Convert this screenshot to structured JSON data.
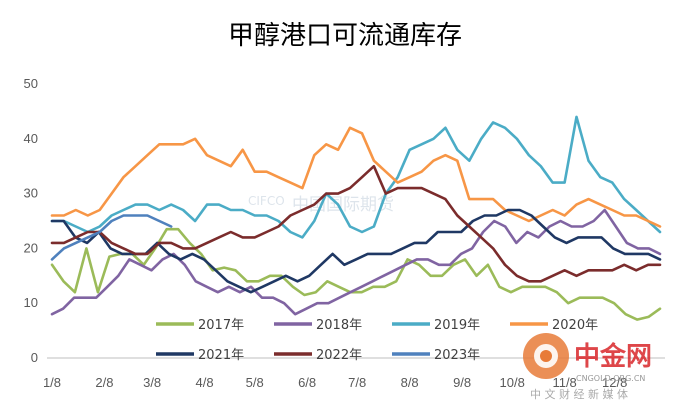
{
  "chart_data": {
    "type": "line",
    "title": "甲醇港口可流通库存",
    "xlabel": "",
    "ylabel": "",
    "ylim": [
      0,
      50
    ],
    "yticks": [
      0,
      10,
      20,
      30,
      40,
      50
    ],
    "x_week_range": [
      1,
      52
    ],
    "x_ticks": [
      {
        "label": "1/8",
        "week": 1
      },
      {
        "label": "2/8",
        "week": 5.4
      },
      {
        "label": "3/8",
        "week": 9.4
      },
      {
        "label": "4/8",
        "week": 13.8
      },
      {
        "label": "5/8",
        "week": 18.0
      },
      {
        "label": "6/8",
        "week": 22.4
      },
      {
        "label": "7/8",
        "week": 26.6
      },
      {
        "label": "8/8",
        "week": 31.0
      },
      {
        "label": "9/8",
        "week": 35.4
      },
      {
        "label": "10/8",
        "week": 39.6
      },
      {
        "label": "11/8",
        "week": 44.0
      },
      {
        "label": "12/8",
        "week": 48.2
      }
    ],
    "grid": false,
    "legend": "bottom",
    "series": [
      {
        "name": "2017年",
        "color": "#9bbb59",
        "values": [
          17,
          14,
          12,
          20,
          12,
          18.5,
          19,
          19,
          17,
          20,
          23.5,
          23.5,
          21,
          19,
          16,
          16.5,
          16,
          14,
          14,
          15,
          15,
          13,
          11.5,
          12,
          14,
          13,
          12,
          12,
          13,
          13,
          14,
          18,
          17,
          15,
          15,
          17,
          18,
          15,
          17,
          13,
          12,
          13,
          13,
          13,
          12,
          10,
          11,
          11,
          11,
          10,
          8,
          7,
          7.5,
          9
        ]
      },
      {
        "name": "2018年",
        "color": "#8064a2",
        "values": [
          8,
          9,
          11,
          11,
          11,
          13,
          15,
          18,
          17,
          16,
          18,
          19,
          17,
          14,
          13,
          12,
          13,
          12,
          13,
          11,
          11,
          10,
          8,
          9,
          10,
          10,
          11,
          12,
          13,
          14,
          15,
          16,
          17,
          18,
          18,
          17,
          17,
          19,
          20,
          23,
          25,
          24,
          21,
          23,
          22,
          24,
          25,
          24,
          24,
          25,
          27,
          24,
          21,
          20,
          20,
          19
        ]
      },
      {
        "name": "2019年",
        "color": "#4bacc6",
        "values": [
          25,
          25,
          24,
          23,
          24,
          26,
          27,
          28,
          28,
          27,
          28,
          27,
          25,
          28,
          28,
          27,
          27,
          26,
          26,
          25,
          23,
          22,
          25,
          30,
          28,
          24,
          23,
          24,
          30,
          33,
          38,
          39,
          40,
          42,
          38,
          36,
          40,
          43,
          42,
          40,
          37,
          35,
          32,
          32,
          44,
          36,
          33,
          32,
          29,
          27,
          25,
          23
        ]
      },
      {
        "name": "2020年",
        "color": "#f79646",
        "values": [
          26,
          26,
          27,
          26,
          27,
          30,
          33,
          35,
          37,
          39,
          39,
          39,
          40,
          37,
          36,
          35,
          38,
          34,
          34,
          33,
          32,
          31,
          37,
          39,
          38,
          42,
          41,
          36,
          34,
          32,
          33,
          34,
          36,
          37,
          36,
          29,
          29,
          29,
          27,
          26,
          25,
          26,
          27,
          26,
          28,
          29,
          28,
          27,
          26,
          26,
          25,
          24
        ]
      },
      {
        "name": "2021年",
        "color": "#1f3864",
        "values": [
          25,
          25,
          22,
          21,
          23,
          20,
          19,
          19,
          19,
          21,
          19,
          18,
          19,
          18,
          16,
          14,
          13,
          12,
          13,
          14,
          15,
          14,
          15,
          17,
          19,
          17,
          18,
          19,
          19,
          19,
          20,
          21,
          21,
          23,
          23,
          23,
          25,
          26,
          26,
          27,
          27,
          26,
          24,
          22,
          21,
          22,
          22,
          22,
          20,
          19,
          19,
          19,
          18
        ]
      },
      {
        "name": "2022年",
        "color": "#7b2c2c",
        "values": [
          21,
          21,
          22,
          23,
          23,
          21,
          20,
          19,
          19,
          21,
          21,
          20,
          20,
          21,
          22,
          23,
          22,
          22,
          23,
          24,
          26,
          27,
          28,
          30,
          30,
          31,
          33,
          35,
          30,
          31,
          31,
          31,
          30,
          29,
          26,
          24,
          22,
          20,
          17,
          15,
          14,
          14,
          15,
          16,
          15,
          16,
          16,
          16,
          17,
          16,
          17,
          17
        ]
      },
      {
        "name": "2023年",
        "color": "#4f81bd",
        "values": [
          18,
          20,
          21,
          22,
          23,
          25,
          26,
          26,
          26,
          25,
          24
        ]
      }
    ]
  },
  "watermark": {
    "cifco_text": "CIFCO",
    "cifco_cn": "中国国际期货",
    "logo_text": "中金网",
    "logo_sub": "中 文 财 经 新 媒 体",
    "logo_url": "CNGOLD.ORG.CN"
  }
}
